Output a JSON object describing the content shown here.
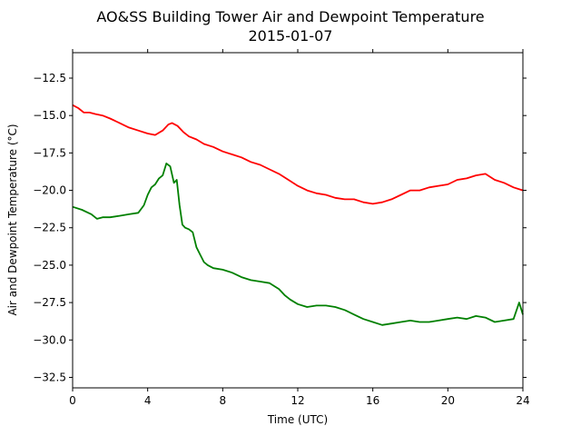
{
  "chart_data": {
    "type": "line",
    "title": "AO&SS Building Tower Air and Dewpoint Temperature",
    "subtitle": "2015-01-07",
    "xlabel": "Time (UTC)",
    "ylabel": "Air and Dewpoint Temperature (°C)",
    "xlim": [
      0,
      24
    ],
    "ylim": [
      -33.2,
      -10.8
    ],
    "xticks": [
      0,
      4,
      8,
      12,
      16,
      20,
      24
    ],
    "yticks": [
      -32.5,
      -30.0,
      -27.5,
      -25.0,
      -22.5,
      -20.0,
      -17.5,
      -15.0,
      -12.5
    ],
    "xtick_labels": [
      "0",
      "4",
      "8",
      "12",
      "16",
      "20",
      "24"
    ],
    "ytick_labels": [
      "−32.5",
      "−30.0",
      "−27.5",
      "−25.0",
      "−22.5",
      "−20.0",
      "−17.5",
      "−15.0",
      "−12.5"
    ],
    "grid": false,
    "legend": "none",
    "series": [
      {
        "color": "#ff0000",
        "x": [
          0,
          0.3,
          0.6,
          0.9,
          1.2,
          1.6,
          2.0,
          2.5,
          3.0,
          3.5,
          4.0,
          4.4,
          4.8,
          5.1,
          5.3,
          5.6,
          5.9,
          6.2,
          6.6,
          7.0,
          7.5,
          8.0,
          8.5,
          9.0,
          9.5,
          10.0,
          10.5,
          11.0,
          11.5,
          12.0,
          12.5,
          13.0,
          13.5,
          14.0,
          14.5,
          15.0,
          15.5,
          16.0,
          16.5,
          17.0,
          17.5,
          18.0,
          18.5,
          19.0,
          19.5,
          20.0,
          20.5,
          21.0,
          21.5,
          22.0,
          22.5,
          23.0,
          23.5,
          24.0
        ],
        "y": [
          -14.3,
          -14.5,
          -14.8,
          -14.8,
          -14.9,
          -15.0,
          -15.2,
          -15.5,
          -15.8,
          -16.0,
          -16.2,
          -16.3,
          -16.0,
          -15.6,
          -15.5,
          -15.7,
          -16.1,
          -16.4,
          -16.6,
          -16.9,
          -17.1,
          -17.4,
          -17.6,
          -17.8,
          -18.1,
          -18.3,
          -18.6,
          -18.9,
          -19.3,
          -19.7,
          -20.0,
          -20.2,
          -20.3,
          -20.5,
          -20.6,
          -20.6,
          -20.8,
          -20.9,
          -20.8,
          -20.6,
          -20.3,
          -20.0,
          -20.0,
          -19.8,
          -19.7,
          -19.6,
          -19.3,
          -19.2,
          -19.0,
          -18.9,
          -19.3,
          -19.5,
          -19.8,
          -20.0
        ]
      },
      {
        "color": "#008000",
        "x": [
          0,
          0.5,
          1.0,
          1.3,
          1.6,
          2.0,
          2.5,
          3.0,
          3.5,
          3.8,
          4.0,
          4.2,
          4.4,
          4.6,
          4.8,
          5.0,
          5.2,
          5.4,
          5.55,
          5.7,
          5.85,
          6.0,
          6.2,
          6.4,
          6.6,
          6.8,
          7.0,
          7.2,
          7.5,
          8.0,
          8.5,
          9.0,
          9.5,
          10.0,
          10.5,
          11.0,
          11.3,
          11.6,
          12.0,
          12.5,
          13.0,
          13.5,
          14.0,
          14.5,
          15.0,
          15.5,
          16.0,
          16.5,
          17.0,
          17.5,
          18.0,
          18.5,
          19.0,
          19.5,
          20.0,
          20.5,
          21.0,
          21.5,
          22.0,
          22.5,
          23.0,
          23.5,
          23.8,
          24.0
        ],
        "y": [
          -21.1,
          -21.3,
          -21.6,
          -21.9,
          -21.8,
          -21.8,
          -21.7,
          -21.6,
          -21.5,
          -21.0,
          -20.3,
          -19.8,
          -19.6,
          -19.2,
          -19.0,
          -18.2,
          -18.4,
          -19.5,
          -19.3,
          -21.0,
          -22.3,
          -22.5,
          -22.6,
          -22.8,
          -23.8,
          -24.3,
          -24.8,
          -25.0,
          -25.2,
          -25.3,
          -25.5,
          -25.8,
          -26.0,
          -26.1,
          -26.2,
          -26.6,
          -27.0,
          -27.3,
          -27.6,
          -27.8,
          -27.7,
          -27.7,
          -27.8,
          -28.0,
          -28.3,
          -28.6,
          -28.8,
          -29.0,
          -28.9,
          -28.8,
          -28.7,
          -28.8,
          -28.8,
          -28.7,
          -28.6,
          -28.5,
          -28.6,
          -28.4,
          -28.5,
          -28.8,
          -28.7,
          -28.6,
          -27.5,
          -28.3
        ]
      }
    ]
  }
}
